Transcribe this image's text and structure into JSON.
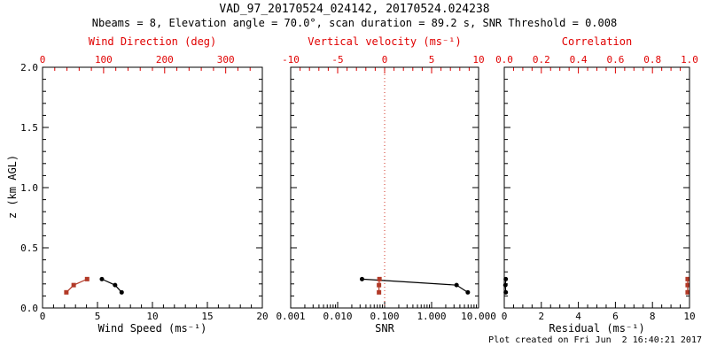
{
  "title": "VAD_97_20170524_024142, 20170524.024238",
  "subtitle": "Nbeams = 8, Elevation angle = 70.0°, scan duration = 89.2 s, SNR Threshold = 0.008",
  "footer": "Plot created on Fri Jun  2 16:40:21 2017",
  "colors": {
    "axis_label_red": "#e00000",
    "tick_red": "#e00000",
    "data_red": "#b23927",
    "data_black": "#000000",
    "frame": "#000000",
    "zero_line_red": "#d03020",
    "background": "#ffffff"
  },
  "chart_data": [
    {
      "type": "line",
      "id": "wind-panel",
      "y_axis": {
        "label": "z (km AGL)",
        "lim": [
          0.0,
          2.0
        ],
        "tick_values": [
          0.0,
          0.5,
          1.0,
          1.5,
          2.0
        ],
        "tick_labels": [
          "0.0",
          "0.5",
          "1.0",
          "1.5",
          "2.0"
        ],
        "minor_step": 0.1,
        "show_labels": true
      },
      "bottom_axis": {
        "label": "Wind Speed (ms⁻¹)",
        "scale": "linear",
        "lim": [
          0,
          20
        ],
        "tick_values": [
          0,
          5,
          10,
          15,
          20
        ],
        "tick_labels": [
          "0",
          "5",
          "10",
          "15",
          "20"
        ],
        "minor_step": 1
      },
      "top_axis": {
        "label": "Wind Direction (deg)",
        "scale": "linear",
        "lim": [
          0,
          360
        ],
        "tick_values": [
          0,
          100,
          200,
          300
        ],
        "tick_labels": [
          "0",
          "100",
          "200",
          "300"
        ],
        "minor_step": 20
      },
      "series": [
        {
          "name": "wind-speed",
          "x_axis": "bottom",
          "color_key": "data_black",
          "marker": "circle",
          "points": [
            [
              7.2,
              0.13
            ],
            [
              6.6,
              0.19
            ],
            [
              5.4,
              0.24
            ]
          ]
        },
        {
          "name": "wind-direction",
          "x_axis": "top",
          "color_key": "data_red",
          "marker": "square",
          "points": [
            [
              39,
              0.13
            ],
            [
              51,
              0.19
            ],
            [
              73,
              0.24
            ]
          ]
        }
      ]
    },
    {
      "type": "line",
      "id": "snr-panel",
      "y_axis": {
        "lim": [
          0.0,
          2.0
        ],
        "tick_values": [
          0.0,
          0.5,
          1.0,
          1.5,
          2.0
        ],
        "tick_labels": [],
        "minor_step": 0.1,
        "show_labels": false
      },
      "bottom_axis": {
        "label": "SNR",
        "scale": "log",
        "lim": [
          0.001,
          10
        ],
        "tick_values": [
          0.001,
          0.01,
          0.1,
          1,
          10
        ],
        "tick_labels": [
          "0.001",
          "0.010",
          "0.100",
          "1.000",
          "10.000"
        ]
      },
      "top_axis": {
        "label": "Vertical velocity (ms⁻¹)",
        "scale": "linear",
        "lim": [
          -10,
          10
        ],
        "tick_values": [
          -10,
          -5,
          0,
          5,
          10
        ],
        "tick_labels": [
          "-10",
          "-5",
          "0",
          "5",
          "10"
        ],
        "minor_step": 1
      },
      "zero_line": {
        "axis": "top",
        "value": 0
      },
      "series": [
        {
          "name": "snr",
          "x_axis": "bottom",
          "color_key": "data_black",
          "marker": "circle",
          "points": [
            [
              5.9,
              0.13
            ],
            [
              3.4,
              0.19
            ],
            [
              0.033,
              0.24
            ]
          ]
        },
        {
          "name": "vertical-velocity",
          "x_axis": "top",
          "color_key": "data_red",
          "marker": "square",
          "points": [
            [
              -0.6,
              0.13
            ],
            [
              -0.6,
              0.19
            ],
            [
              -0.55,
              0.24
            ]
          ]
        }
      ]
    },
    {
      "type": "line",
      "id": "residual-panel",
      "y_axis": {
        "lim": [
          0.0,
          2.0
        ],
        "tick_values": [
          0.0,
          0.5,
          1.0,
          1.5,
          2.0
        ],
        "tick_labels": [],
        "minor_step": 0.1,
        "show_labels": false
      },
      "bottom_axis": {
        "label": "Residual (ms⁻¹)",
        "scale": "linear",
        "lim": [
          0,
          10
        ],
        "tick_values": [
          0,
          2,
          4,
          6,
          8,
          10
        ],
        "tick_labels": [
          "0",
          "2",
          "4",
          "6",
          "8",
          "10"
        ],
        "minor_step": 0.5
      },
      "top_axis": {
        "label": "Correlation",
        "scale": "linear",
        "lim": [
          0.0,
          1.0
        ],
        "tick_values": [
          0.0,
          0.2,
          0.4,
          0.6,
          0.8,
          1.0
        ],
        "tick_labels": [
          "0.0",
          "0.2",
          "0.4",
          "0.6",
          "0.8",
          "1.0"
        ],
        "minor_step": 0.05
      },
      "series": [
        {
          "name": "residual",
          "x_axis": "bottom",
          "color_key": "data_black",
          "marker": "circle",
          "points": [
            [
              0.08,
              0.13
            ],
            [
              0.06,
              0.19
            ],
            [
              0.08,
              0.24
            ]
          ]
        },
        {
          "name": "correlation",
          "x_axis": "top",
          "color_key": "data_red",
          "marker": "square",
          "points": [
            [
              0.99,
              0.13
            ],
            [
              0.99,
              0.19
            ],
            [
              0.99,
              0.24
            ]
          ]
        }
      ]
    }
  ]
}
